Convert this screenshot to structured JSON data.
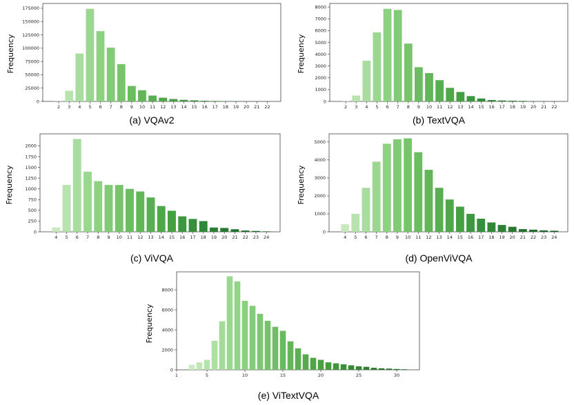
{
  "figure": {
    "panel_count": 5
  },
  "chart_data": [
    {
      "type": "bar",
      "caption": "(a) VQAv2",
      "ylabel": "Frequency",
      "categories": [
        "2",
        "3",
        "4",
        "5",
        "6",
        "7",
        "8",
        "9",
        "10",
        "11",
        "12",
        "13",
        "14",
        "15",
        "16",
        "17",
        "18",
        "19",
        "20",
        "21",
        "22"
      ],
      "values": [
        300,
        20000,
        90000,
        174000,
        132000,
        101000,
        70000,
        29000,
        21000,
        11000,
        7000,
        4500,
        3000,
        2000,
        1200,
        800,
        600,
        400,
        300,
        200,
        150
      ],
      "yticks": [
        0,
        25000,
        50000,
        75000,
        100000,
        125000,
        150000,
        175000
      ],
      "ylim": [
        0,
        184000
      ],
      "colors": [
        "#c9eac0",
        "#b8e3ae",
        "#a9dd9f",
        "#9bd790",
        "#8ed182",
        "#82cb76",
        "#77c46b",
        "#6cbd61",
        "#62b658",
        "#58ae50",
        "#4ea749",
        "#459f43",
        "#3d973e",
        "#368f3a",
        "#308736",
        "#2b8033",
        "#277930",
        "#23722d",
        "#206b2b",
        "#1d6529",
        "#1a5f27"
      ]
    },
    {
      "type": "bar",
      "caption": "(b) TextVQA",
      "ylabel": "Frequency",
      "categories": [
        "2",
        "3",
        "4",
        "5",
        "6",
        "7",
        "8",
        "9",
        "10",
        "11",
        "12",
        "13",
        "14",
        "15",
        "16",
        "17",
        "18",
        "19",
        "20",
        "21",
        "22"
      ],
      "values": [
        20,
        500,
        3450,
        5850,
        7850,
        7750,
        4900,
        2900,
        2400,
        1800,
        1150,
        800,
        450,
        250,
        120,
        80,
        60,
        40,
        20,
        15,
        10
      ],
      "yticks": [
        0,
        1000,
        2000,
        3000,
        4000,
        5000,
        6000,
        7000,
        8000
      ],
      "ylim": [
        0,
        8300
      ],
      "colors": [
        "#c9eac0",
        "#b8e3ae",
        "#a9dd9f",
        "#9bd790",
        "#8ed182",
        "#82cb76",
        "#77c46b",
        "#6cbd61",
        "#62b658",
        "#58ae50",
        "#4ea749",
        "#459f43",
        "#3d973e",
        "#368f3a",
        "#308736",
        "#2b8033",
        "#277930",
        "#23722d",
        "#206b2b",
        "#1d6529",
        "#1a5f27"
      ]
    },
    {
      "type": "bar",
      "caption": "(c) ViVQA",
      "ylabel": "Frequency",
      "categories": [
        "4",
        "5",
        "6",
        "7",
        "8",
        "9",
        "10",
        "11",
        "12",
        "13",
        "14",
        "15",
        "16",
        "17",
        "18",
        "19",
        "20",
        "21",
        "22",
        "23",
        "24"
      ],
      "values": [
        100,
        1090,
        2160,
        1400,
        1180,
        1090,
        1090,
        1000,
        940,
        800,
        600,
        490,
        360,
        300,
        250,
        100,
        90,
        60,
        30,
        20,
        10
      ],
      "yticks": [
        0,
        250,
        500,
        750,
        1000,
        1250,
        1500,
        1750,
        2000
      ],
      "ylim": [
        0,
        2280
      ],
      "colors": [
        "#c9eac0",
        "#b8e3ae",
        "#a9dd9f",
        "#9bd790",
        "#8ed182",
        "#82cb76",
        "#77c46b",
        "#6cbd61",
        "#62b658",
        "#58ae50",
        "#4ea749",
        "#459f43",
        "#3d973e",
        "#368f3a",
        "#308736",
        "#2b8033",
        "#277930",
        "#23722d",
        "#206b2b",
        "#1d6529",
        "#1a5f27"
      ]
    },
    {
      "type": "bar",
      "caption": "(d) OpenViVQA",
      "ylabel": "Frequency",
      "categories": [
        "4",
        "5",
        "6",
        "7",
        "8",
        "9",
        "10",
        "11",
        "12",
        "13",
        "14",
        "15",
        "16",
        "17",
        "18",
        "19",
        "20",
        "21",
        "22",
        "23",
        "24"
      ],
      "values": [
        420,
        1000,
        2450,
        3900,
        4900,
        5150,
        5200,
        4430,
        3450,
        2450,
        1800,
        1400,
        1000,
        730,
        520,
        380,
        280,
        150,
        120,
        80,
        60
      ],
      "yticks": [
        0,
        1000,
        2000,
        3000,
        4000,
        5000
      ],
      "ylim": [
        0,
        5450
      ],
      "colors": [
        "#c9eac0",
        "#b8e3ae",
        "#a9dd9f",
        "#9bd790",
        "#8ed182",
        "#82cb76",
        "#77c46b",
        "#6cbd61",
        "#62b658",
        "#58ae50",
        "#4ea749",
        "#459f43",
        "#3d973e",
        "#368f3a",
        "#308736",
        "#2b8033",
        "#277930",
        "#23722d",
        "#206b2b",
        "#1d6529",
        "#1a5f27"
      ]
    },
    {
      "type": "bar",
      "caption": "(e) ViTextVQA",
      "ylabel": "Frequency",
      "x": [
        3,
        4,
        5,
        6,
        7,
        8,
        9,
        10,
        11,
        12,
        13,
        14,
        15,
        16,
        17,
        18,
        19,
        20,
        21,
        22,
        23,
        24,
        25,
        26,
        27,
        28,
        29,
        30,
        31
      ],
      "values": [
        500,
        750,
        1000,
        2900,
        4850,
        9350,
        8850,
        6900,
        6400,
        5600,
        4900,
        4300,
        3900,
        2850,
        2150,
        1550,
        1200,
        1000,
        750,
        650,
        550,
        450,
        350,
        300,
        200,
        150,
        120,
        80,
        50
      ],
      "xticks": [
        1,
        5,
        10,
        15,
        20,
        25,
        30
      ],
      "xlim": [
        1,
        33
      ],
      "yticks": [
        0,
        2000,
        4000,
        6000,
        8000
      ],
      "ylim": [
        0,
        9800
      ],
      "colors": [
        "#c9eac0",
        "#c0e6b6",
        "#b6e2ac",
        "#ade0a3",
        "#a4db9a",
        "#9bd790",
        "#93d389",
        "#8bcf81",
        "#84cb7a",
        "#7dc772",
        "#76c26b",
        "#6fbd65",
        "#69b95f",
        "#62b558",
        "#5caf52",
        "#56aa4d",
        "#50a548",
        "#4ba043",
        "#459b3f",
        "#40963b",
        "#3b9037",
        "#378a34",
        "#338531",
        "#2f7f2e",
        "#2b792c",
        "#287429",
        "#256e27",
        "#226925",
        "#1f6323"
      ]
    }
  ]
}
